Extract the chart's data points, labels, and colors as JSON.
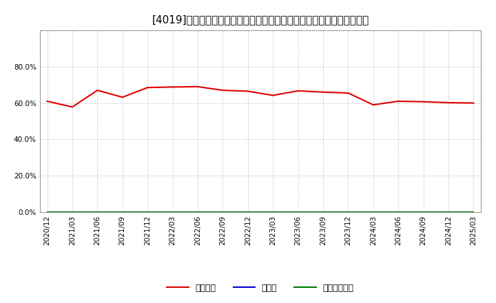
{
  "title": "[4019]　自己資本、のれん、繰延税金資産の総資産に対する比率の推移",
  "x_labels": [
    "2020/12",
    "2021/03",
    "2021/06",
    "2021/09",
    "2021/12",
    "2022/03",
    "2022/06",
    "2022/09",
    "2022/12",
    "2023/03",
    "2023/06",
    "2023/09",
    "2023/12",
    "2024/03",
    "2024/06",
    "2024/09",
    "2024/12",
    "2025/03"
  ],
  "jiko_shihon": [
    0.61,
    0.578,
    0.67,
    0.632,
    0.685,
    0.688,
    0.69,
    0.67,
    0.665,
    0.642,
    0.667,
    0.66,
    0.655,
    0.59,
    0.61,
    0.607,
    0.602,
    0.6
  ],
  "noren": [
    0.0,
    0.0,
    0.0,
    0.0,
    0.0,
    0.0,
    0.0,
    0.0,
    0.0,
    0.0,
    0.0,
    0.0,
    0.0,
    0.0,
    0.0,
    0.0,
    0.0,
    0.0
  ],
  "kurinobe_zeikin": [
    0.0,
    0.0,
    0.0,
    0.0,
    0.0,
    0.0,
    0.0,
    0.0,
    0.0,
    0.0,
    0.0,
    0.0,
    0.0,
    0.0,
    0.0,
    0.0,
    0.0,
    0.0
  ],
  "line_colors": {
    "jiko_shihon": "#dd0000",
    "noren": "#0000cc",
    "kurinobe_zeikin": "#007700"
  },
  "legend_labels": {
    "jiko_shihon": "自己資本",
    "noren": "のれん",
    "kurinobe_zeikin": "繰延税金資産"
  },
  "ylim": [
    0.0,
    1.0
  ],
  "yticks": [
    0.0,
    0.2,
    0.4,
    0.6,
    0.8
  ],
  "ytick_labels": [
    "0.0%",
    "20.0%",
    "40.0%",
    "60.0%",
    "80.0%"
  ],
  "background_color": "#ffffff",
  "plot_background_color": "#ffffff",
  "grid_color": "#bbbbbb",
  "title_fontsize": 11,
  "tick_fontsize": 7.5,
  "legend_fontsize": 9
}
